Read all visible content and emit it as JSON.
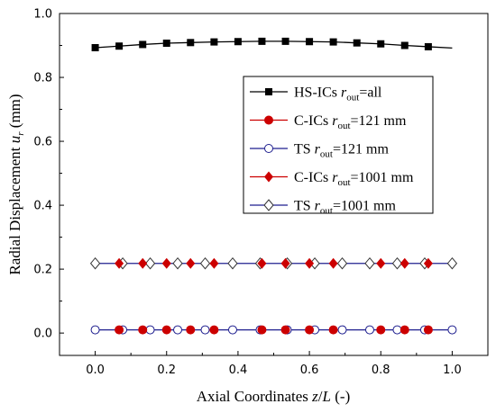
{
  "chart_data": {
    "type": "line",
    "xlabel": {
      "prefix": "Axial Coordinates ",
      "var": "z",
      "mid": "/",
      "var2": "L",
      "suffix": " (-)"
    },
    "ylabel": {
      "prefix": "Radial Displacement ",
      "var": "u",
      "sub": "r",
      "suffix": " (mm)"
    },
    "xlim": [
      -0.1,
      1.1
    ],
    "ylim": [
      -0.07,
      1.0
    ],
    "xticks": [
      "0.0",
      "0.2",
      "0.4",
      "0.6",
      "0.8",
      "1.0"
    ],
    "yticks": [
      "0.0",
      "0.2",
      "0.4",
      "0.6",
      "0.8",
      "1.0"
    ],
    "grid": false,
    "legend_position": "right-middle",
    "series": [
      {
        "name": {
          "pre": "HS-ICs ",
          "r": "r",
          "sub": "out",
          "post": "=all"
        },
        "color": "#000000",
        "marker": "filled-square",
        "x": [
          0.0,
          0.067,
          0.133,
          0.2,
          0.267,
          0.333,
          0.4,
          0.467,
          0.533,
          0.6,
          0.667,
          0.733,
          0.8,
          0.867,
          0.933
        ],
        "y": [
          0.893,
          0.898,
          0.903,
          0.907,
          0.909,
          0.911,
          0.912,
          0.913,
          0.913,
          0.912,
          0.911,
          0.908,
          0.905,
          0.9,
          0.896
        ],
        "line_x": [
          0.0,
          0.067,
          0.133,
          0.2,
          0.267,
          0.333,
          0.4,
          0.467,
          0.533,
          0.6,
          0.667,
          0.733,
          0.8,
          0.867,
          0.933,
          1.0
        ],
        "line_y": [
          0.893,
          0.898,
          0.903,
          0.907,
          0.909,
          0.911,
          0.912,
          0.913,
          0.913,
          0.912,
          0.911,
          0.908,
          0.905,
          0.9,
          0.896,
          0.892
        ]
      },
      {
        "name": {
          "pre": "C-ICs ",
          "r": "r",
          "sub": "out",
          "post": "=121 mm"
        },
        "color": "#cc0000",
        "marker": "filled-circle",
        "x": [
          0.067,
          0.133,
          0.2,
          0.267,
          0.333,
          0.467,
          0.533,
          0.6,
          0.667,
          0.8,
          0.867,
          0.933
        ],
        "y": [
          0.01,
          0.01,
          0.01,
          0.01,
          0.01,
          0.01,
          0.01,
          0.01,
          0.01,
          0.01,
          0.01,
          0.01
        ]
      },
      {
        "name": {
          "pre": "TS ",
          "r": "r",
          "sub": "out",
          "post": "=121 mm"
        },
        "color": "#1f1f8f",
        "marker": "open-circle",
        "x": [
          0.0,
          0.077,
          0.154,
          0.231,
          0.308,
          0.385,
          0.462,
          0.538,
          0.615,
          0.692,
          0.769,
          0.846,
          0.923,
          1.0
        ],
        "y": [
          0.01,
          0.01,
          0.01,
          0.01,
          0.01,
          0.01,
          0.01,
          0.01,
          0.01,
          0.01,
          0.01,
          0.01,
          0.01,
          0.01
        ],
        "line_x": [
          0.0,
          1.0
        ],
        "line_y": [
          0.01,
          0.01
        ]
      },
      {
        "name": {
          "pre": "C-ICs ",
          "r": "r",
          "sub": "out",
          "post": "=1001 mm"
        },
        "color": "#cc0000",
        "marker": "filled-diamond",
        "x": [
          0.067,
          0.133,
          0.2,
          0.267,
          0.333,
          0.467,
          0.533,
          0.6,
          0.667,
          0.8,
          0.867,
          0.933
        ],
        "y": [
          0.218,
          0.218,
          0.218,
          0.218,
          0.218,
          0.218,
          0.218,
          0.218,
          0.218,
          0.218,
          0.218,
          0.218
        ]
      },
      {
        "name": {
          "pre": "TS ",
          "r": "r",
          "sub": "out",
          "post": "=1001 mm"
        },
        "color": "#1f1f8f",
        "marker": "open-diamond",
        "x": [
          0.0,
          0.077,
          0.154,
          0.231,
          0.308,
          0.385,
          0.462,
          0.538,
          0.615,
          0.692,
          0.769,
          0.846,
          0.923,
          1.0
        ],
        "y": [
          0.218,
          0.218,
          0.218,
          0.218,
          0.218,
          0.218,
          0.218,
          0.218,
          0.218,
          0.218,
          0.218,
          0.218,
          0.218,
          0.218
        ],
        "line_x": [
          0.0,
          1.0
        ],
        "line_y": [
          0.218,
          0.218
        ]
      }
    ]
  }
}
